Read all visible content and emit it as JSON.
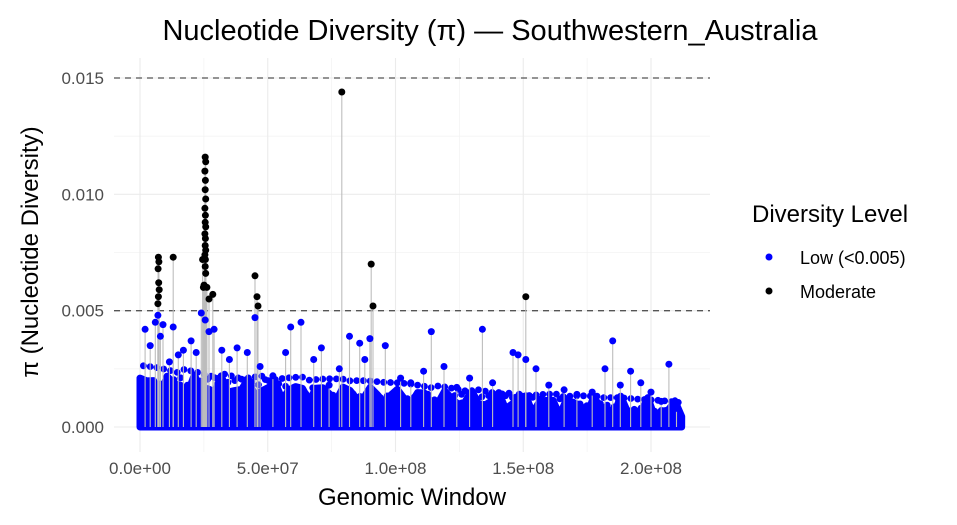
{
  "chart_data": {
    "type": "scatter",
    "title": "Nucleotide Diversity (π) — Southwestern_Australia",
    "xlabel": "Genomic Window",
    "ylabel": "π (Nucleotide Diversity)",
    "xlim": [
      -2000000,
      223000000
    ],
    "ylim": [
      -0.0003,
      0.0157
    ],
    "x_ticks": [
      0,
      50000000,
      100000000,
      150000000,
      200000000
    ],
    "x_tick_labels": [
      "0.0e+00",
      "5.0e+07",
      "1.0e+08",
      "1.5e+08",
      "2.0e+08"
    ],
    "y_ticks": [
      0,
      0.005,
      0.01,
      0.015
    ],
    "y_tick_labels": [
      "0.000",
      "0.005",
      "0.010",
      "0.015"
    ],
    "threshold_lines": [
      0.005,
      0.015
    ],
    "grid": true,
    "legend": {
      "title": "Diversity Level",
      "placement": "right",
      "entries": [
        {
          "label": "Low (<0.005)",
          "color": "#0000ff"
        },
        {
          "label": "Moderate",
          "color": "#000000"
        }
      ]
    },
    "series": [
      {
        "name": "Low (<0.005)",
        "color": "#0000ff",
        "points": [
          [
            2000000,
            0.0042
          ],
          [
            4000000,
            0.0035
          ],
          [
            6000000,
            0.0045
          ],
          [
            7000000,
            0.0048
          ],
          [
            8000000,
            0.0039
          ],
          [
            9000000,
            0.0044
          ],
          [
            11500000,
            0.0028
          ],
          [
            13000000,
            0.0043
          ],
          [
            15000000,
            0.0031
          ],
          [
            17000000,
            0.0033
          ],
          [
            20000000,
            0.0037
          ],
          [
            22000000,
            0.0032
          ],
          [
            24000000,
            0.0049
          ],
          [
            25500000,
            0.0046
          ],
          [
            27000000,
            0.0041
          ],
          [
            29000000,
            0.0042
          ],
          [
            32000000,
            0.0033
          ],
          [
            35000000,
            0.0029
          ],
          [
            38000000,
            0.0034
          ],
          [
            42000000,
            0.0032
          ],
          [
            45000000,
            0.0047
          ],
          [
            47000000,
            0.0026
          ],
          [
            52000000,
            0.0022
          ],
          [
            57000000,
            0.0032
          ],
          [
            59000000,
            0.0043
          ],
          [
            63000000,
            0.0045
          ],
          [
            68000000,
            0.0029
          ],
          [
            71000000,
            0.0034
          ],
          [
            74000000,
            0.0018
          ],
          [
            78000000,
            0.0025
          ],
          [
            82000000,
            0.0039
          ],
          [
            86000000,
            0.0036
          ],
          [
            88000000,
            0.0029
          ],
          [
            90000000,
            0.0038
          ],
          [
            96000000,
            0.0035
          ],
          [
            102000000,
            0.0021
          ],
          [
            106000000,
            0.0019
          ],
          [
            111000000,
            0.0024
          ],
          [
            114000000,
            0.0041
          ],
          [
            119000000,
            0.0026
          ],
          [
            124000000,
            0.0017
          ],
          [
            129000000,
            0.0021
          ],
          [
            134000000,
            0.0042
          ],
          [
            138000000,
            0.0019
          ],
          [
            146000000,
            0.0032
          ],
          [
            148000000,
            0.0031
          ],
          [
            151000000,
            0.0029
          ],
          [
            155000000,
            0.0025
          ],
          [
            160000000,
            0.0018
          ],
          [
            166000000,
            0.0016
          ],
          [
            171000000,
            0.0014
          ],
          [
            177000000,
            0.0015
          ],
          [
            182000000,
            0.0025
          ],
          [
            185000000,
            0.0037
          ],
          [
            188000000,
            0.0018
          ],
          [
            192000000,
            0.0024
          ],
          [
            196000000,
            0.0019
          ],
          [
            200000000,
            0.0015
          ],
          [
            204000000,
            0.0011
          ],
          [
            207000000,
            0.0027
          ],
          [
            210000000,
            0.0008
          ]
        ]
      },
      {
        "name": "Moderate",
        "color": "#000000",
        "points": [
          [
            7200000,
            0.0073
          ],
          [
            7400000,
            0.0071
          ],
          [
            7100000,
            0.0068
          ],
          [
            7300000,
            0.0062
          ],
          [
            7500000,
            0.0059
          ],
          [
            7200000,
            0.0056
          ],
          [
            7000000,
            0.0053
          ],
          [
            13000000,
            0.0073
          ],
          [
            25500000,
            0.0116
          ],
          [
            25700000,
            0.0114
          ],
          [
            25400000,
            0.011
          ],
          [
            25600000,
            0.0106
          ],
          [
            25500000,
            0.0102
          ],
          [
            25700000,
            0.0098
          ],
          [
            25400000,
            0.0094
          ],
          [
            25600000,
            0.0091
          ],
          [
            25500000,
            0.0088
          ],
          [
            25700000,
            0.0086
          ],
          [
            25400000,
            0.0083
          ],
          [
            25600000,
            0.0081
          ],
          [
            25500000,
            0.0078
          ],
          [
            25700000,
            0.0076
          ],
          [
            25400000,
            0.0074
          ],
          [
            25600000,
            0.0072
          ],
          [
            25500000,
            0.0069
          ],
          [
            25700000,
            0.0066
          ],
          [
            24500000,
            0.0072
          ],
          [
            25100000,
            0.0061
          ],
          [
            26200000,
            0.006
          ],
          [
            24800000,
            0.006
          ],
          [
            27000000,
            0.0055
          ],
          [
            28500000,
            0.0057
          ],
          [
            45000000,
            0.0065
          ],
          [
            45800000,
            0.0056
          ],
          [
            46200000,
            0.0052
          ],
          [
            79000000,
            0.0144
          ],
          [
            90500000,
            0.007
          ],
          [
            91200000,
            0.0052
          ],
          [
            151000000,
            0.0056
          ]
        ]
      }
    ]
  }
}
